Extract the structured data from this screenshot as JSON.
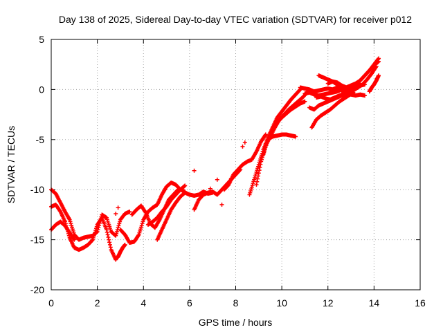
{
  "chart_data": {
    "type": "scatter",
    "title": "Day 138 of 2025, Sidereal Day-to-day VTEC variation (SDTVAR) for receiver p012",
    "xlabel": "GPS time / hours",
    "ylabel": "SDTVAR / TECUs",
    "xlim": [
      0,
      16
    ],
    "ylim": [
      -20,
      5
    ],
    "xticks": [
      "0",
      "2",
      "4",
      "6",
      "8",
      "10",
      "12",
      "14",
      "16"
    ],
    "yticks": [
      "5",
      "0",
      "-5",
      "-10",
      "-15",
      "-20"
    ],
    "grid": true,
    "marker": "+",
    "color": "#ff0000",
    "series": [
      {
        "x": [
          0.0,
          0.2,
          0.4,
          0.6,
          0.8,
          1.0,
          1.2,
          1.4,
          1.6,
          1.8,
          2.0,
          2.2,
          2.4,
          2.6,
          2.8,
          3.0,
          3.2,
          3.4
        ],
        "y": [
          -10.0,
          -10.4,
          -11.3,
          -12.2,
          -13.0,
          -14.5,
          -15.0,
          -14.8,
          -14.7,
          -14.6,
          -14.2,
          -12.5,
          -12.8,
          -14.2,
          -14.6,
          -13.0,
          -12.4,
          -12.2
        ]
      },
      {
        "x": [
          0.0,
          0.2,
          0.4,
          0.6,
          0.8,
          1.0,
          1.2,
          1.4,
          1.6,
          1.8,
          2.0,
          2.2,
          2.4,
          2.6,
          2.8
        ],
        "y": [
          -11.7,
          -11.5,
          -12.2,
          -13.2,
          -14.8,
          -15.8,
          -16.0,
          -15.8,
          -15.5,
          -15.0,
          -13.5,
          -12.8,
          -14.0,
          -16.0,
          -17.0
        ]
      },
      {
        "x": [
          0.0,
          0.2,
          0.4,
          0.6,
          0.8,
          1.0
        ],
        "y": [
          -14.0,
          -13.5,
          -13.2,
          -13.6,
          -14.3,
          -15.0
        ]
      },
      {
        "x": [
          3.0,
          3.2,
          3.4,
          3.6,
          3.8,
          4.0,
          4.2,
          4.4,
          4.6,
          4.8,
          5.0,
          5.2,
          5.4,
          5.6,
          5.8
        ],
        "y": [
          -14.0,
          -14.5,
          -15.3,
          -15.2,
          -14.5,
          -13.0,
          -12.2,
          -11.8,
          -11.5,
          -10.5,
          -9.7,
          -9.3,
          -9.5,
          -10.0,
          -10.2
        ]
      },
      {
        "x": [
          3.5,
          3.7,
          3.9,
          4.1,
          4.3,
          4.5,
          4.7,
          4.9,
          5.1,
          5.3,
          5.5
        ],
        "y": [
          -12.5,
          -12.0,
          -11.6,
          -12.3,
          -13.4,
          -13.8,
          -13.0,
          -12.0,
          -11.0,
          -10.5,
          -10.0
        ]
      },
      {
        "x": [
          4.6,
          4.8,
          5.0,
          5.2,
          5.4,
          5.6,
          5.8,
          6.0,
          6.2,
          6.4,
          6.6,
          6.8,
          7.0
        ],
        "y": [
          -15.0,
          -14.0,
          -13.0,
          -12.0,
          -11.3,
          -10.7,
          -10.3,
          -10.5,
          -10.6,
          -10.5,
          -10.2,
          -10.4,
          -10.3
        ]
      },
      {
        "x": [
          4.2,
          4.4,
          4.6,
          4.8,
          5.0,
          5.2,
          5.4,
          5.6,
          5.8
        ],
        "y": [
          -13.5,
          -13.2,
          -12.8,
          -12.2,
          -11.7,
          -11.0,
          -10.5,
          -10.0,
          -9.6
        ]
      },
      {
        "x": [
          6.2,
          6.4,
          6.6,
          6.8,
          7.0,
          7.2,
          7.4,
          7.6,
          7.8,
          8.0,
          8.2
        ],
        "y": [
          -12.0,
          -11.0,
          -10.5,
          -10.3,
          -10.2,
          -10.5,
          -10.0,
          -9.5,
          -9.0,
          -8.5,
          -8.0
        ]
      },
      {
        "x": [
          7.5,
          7.7,
          7.9,
          8.1,
          8.3,
          8.5,
          8.7,
          8.9,
          9.1,
          9.3
        ],
        "y": [
          -10.0,
          -9.5,
          -8.5,
          -8.0,
          -7.5,
          -7.2,
          -7.0,
          -6.2,
          -5.2,
          -4.5
        ]
      },
      {
        "x": [
          8.6,
          8.8,
          9.0,
          9.2,
          9.4,
          9.6,
          9.8,
          10.0,
          10.2,
          10.4,
          10.6,
          10.8
        ],
        "y": [
          -10.5,
          -9.0,
          -7.5,
          -6.0,
          -4.8,
          -3.8,
          -2.8,
          -2.2,
          -1.6,
          -1.0,
          -0.5,
          0.0
        ]
      },
      {
        "x": [
          8.9,
          9.1,
          9.3,
          9.5,
          9.7,
          9.9,
          10.1,
          10.3,
          10.5,
          10.7,
          10.9,
          11.1
        ],
        "y": [
          -9.5,
          -7.2,
          -5.6,
          -4.7,
          -3.8,
          -3.0,
          -2.5,
          -2.0,
          -1.6,
          -1.2,
          -0.8,
          -0.3
        ]
      },
      {
        "x": [
          9.2,
          9.4,
          9.6,
          9.8,
          10.0,
          10.2,
          10.4,
          10.6
        ],
        "y": [
          -6.5,
          -5.0,
          -4.7,
          -4.6,
          -4.5,
          -4.5,
          -4.6,
          -4.7
        ]
      },
      {
        "x": [
          9.6,
          9.8,
          10.0,
          10.2,
          10.4,
          10.6,
          10.8,
          11.0
        ],
        "y": [
          -4.0,
          -3.3,
          -2.8,
          -2.4,
          -2.0,
          -1.7,
          -1.4,
          -1.2
        ]
      },
      {
        "x": [
          10.8,
          11.0,
          11.2,
          11.4,
          11.6,
          11.8,
          12.0,
          12.2,
          12.4,
          12.6,
          12.8,
          13.0,
          13.2,
          13.4
        ],
        "y": [
          0.2,
          0.1,
          0.0,
          -0.2,
          -0.1,
          0.0,
          0.1,
          0.0,
          0.2,
          0.3,
          0.2,
          0.4,
          0.5,
          0.6
        ]
      },
      {
        "x": [
          11.0,
          11.2,
          11.4,
          11.6,
          11.8,
          12.0,
          12.2,
          12.4,
          12.6,
          12.8,
          13.0,
          13.2,
          13.4,
          13.6
        ],
        "y": [
          -0.4,
          -0.3,
          -0.5,
          -0.6,
          -0.5,
          -0.4,
          -0.3,
          -0.2,
          0.0,
          -0.1,
          0.0,
          0.2,
          0.4,
          0.5
        ]
      },
      {
        "x": [
          11.5,
          11.7,
          11.9,
          12.1,
          12.3,
          12.5,
          12.7,
          12.9,
          13.1,
          13.3,
          13.5,
          13.7,
          13.9,
          14.1
        ],
        "y": [
          -0.8,
          -0.7,
          -0.9,
          -1.0,
          -0.8,
          -0.6,
          -0.5,
          -0.3,
          -0.1,
          0.2,
          0.5,
          1.0,
          1.6,
          2.3
        ]
      },
      {
        "x": [
          11.6,
          11.8,
          12.0,
          12.2,
          12.4,
          12.6,
          12.8,
          13.0,
          13.2,
          13.4,
          13.6,
          13.8,
          14.0,
          14.2
        ],
        "y": [
          1.4,
          1.2,
          1.0,
          0.8,
          0.5,
          0.3,
          0.1,
          -0.1,
          0.4,
          0.9,
          1.4,
          1.9,
          2.4,
          2.8
        ]
      },
      {
        "x": [
          12.0,
          12.2,
          12.4,
          12.6,
          12.8,
          13.0,
          13.2,
          13.4,
          13.6,
          13.8,
          14.0,
          14.2
        ],
        "y": [
          0.6,
          0.8,
          0.7,
          0.4,
          0.2,
          0.4,
          0.6,
          0.9,
          1.4,
          1.9,
          2.5,
          3.1
        ]
      },
      {
        "x": [
          11.2,
          11.4,
          11.6,
          11.8,
          12.0,
          12.2,
          12.4,
          12.6,
          12.8,
          13.0
        ],
        "y": [
          -1.8,
          -2.0,
          -1.6,
          -1.4,
          -1.2,
          -1.0,
          -0.8,
          -0.6,
          -0.4,
          -0.2
        ]
      },
      {
        "x": [
          11.3,
          11.5,
          11.7,
          11.9,
          12.1,
          12.3,
          12.5,
          12.7,
          12.9,
          13.1
        ],
        "y": [
          -3.8,
          -3.0,
          -2.6,
          -2.3,
          -2.0,
          -1.6,
          -1.2,
          -0.9,
          -0.6,
          -0.3
        ]
      },
      {
        "x": [
          12.6,
          12.8,
          13.0,
          13.2,
          13.4,
          13.6
        ],
        "y": [
          -0.4,
          -0.5,
          -0.5,
          -0.6,
          -0.5,
          -0.6
        ]
      },
      {
        "x": [
          13.8,
          13.9,
          14.0,
          14.1,
          14.2
        ],
        "y": [
          -0.2,
          0.2,
          0.5,
          0.9,
          1.4
        ]
      },
      {
        "x": [
          2.8,
          2.9,
          3.0,
          3.1,
          3.2
        ],
        "y": [
          -16.9,
          -16.7,
          -16.2,
          -15.8,
          -15.5
        ]
      }
    ],
    "isolated_points": {
      "x": [
        6.2,
        7.2,
        7.4,
        7.8,
        8.3,
        8.4,
        6.9,
        2.8,
        2.9
      ],
      "y": [
        -8.1,
        -9.0,
        -11.5,
        -8.9,
        -5.7,
        -5.3,
        -9.9,
        -12.4,
        -11.8
      ]
    }
  }
}
